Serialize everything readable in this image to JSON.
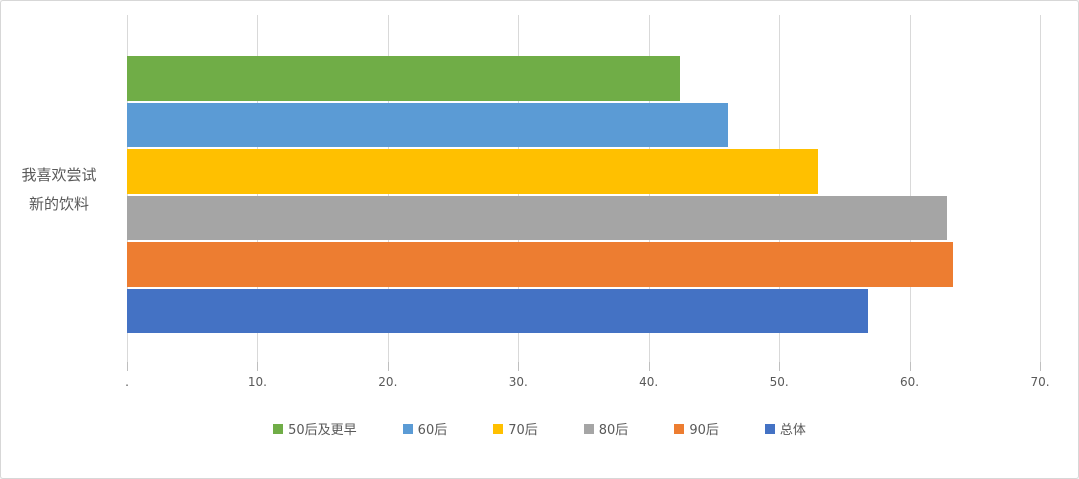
{
  "chart_data": {
    "type": "bar",
    "orientation": "horizontal",
    "title": "",
    "categories": [
      "我喜欢尝试新的饮料"
    ],
    "category_label_lines": [
      "我喜欢尝试",
      "新的饮料"
    ],
    "series": [
      {
        "name": "50后及更早",
        "values": [
          42.4
        ],
        "color": "#70AD47"
      },
      {
        "name": "60后",
        "values": [
          46.1
        ],
        "color": "#5B9BD5"
      },
      {
        "name": "70后",
        "values": [
          53.0
        ],
        "color": "#FFC000"
      },
      {
        "name": "80后",
        "values": [
          62.9
        ],
        "color": "#A5A5A5"
      },
      {
        "name": "90后",
        "values": [
          63.3
        ],
        "color": "#ED7D31"
      },
      {
        "name": "总体",
        "values": [
          56.8
        ],
        "color": "#4472C4"
      }
    ],
    "xlim": [
      0,
      70
    ],
    "x_ticks": [
      0,
      10,
      20,
      30,
      40,
      50,
      60,
      70
    ],
    "x_tick_labels": [
      ".",
      "10.",
      "20.",
      "30.",
      "40.",
      "50.",
      "60.",
      "70."
    ],
    "grid": true,
    "legend_position": "bottom"
  },
  "colors": {
    "background": "#FFFFFF",
    "border": "#D7D7D7",
    "gridline": "#D9D9D9",
    "axis_text": "#595959"
  }
}
